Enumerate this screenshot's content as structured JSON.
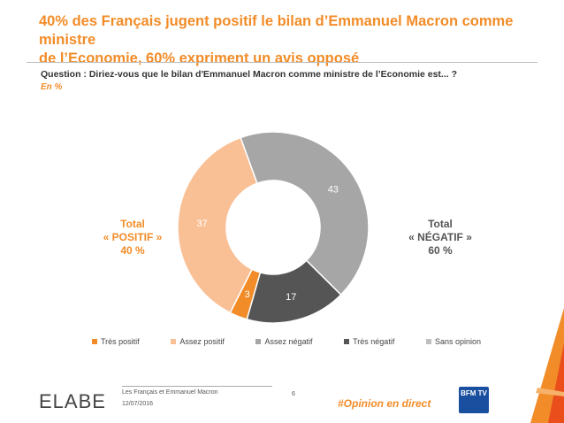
{
  "header": {
    "title_line1": "40% des Français jugent positif le bilan d’Emmanuel Macron comme ministre",
    "title_line2": "de l’Economie, 60% expriment un avis opposé",
    "question": "Question : Diriez-vous que le bilan d'Emmanuel Macron comme ministre de l’Economie est... ?",
    "unit": "En %"
  },
  "totals": {
    "positive": {
      "line1": "Total",
      "line2": "« POSITIF »",
      "line3": "40 %"
    },
    "negative": {
      "line1": "Total",
      "line2": "« NÉGATIF »",
      "line3": "60 %"
    }
  },
  "chart_data": {
    "type": "pie",
    "donut": true,
    "categories": [
      "Très positif",
      "Assez positif",
      "Assez négatif",
      "Très négatif",
      "Sans opinion"
    ],
    "values": [
      3,
      37,
      43,
      17,
      0
    ],
    "labels": [
      "3",
      "37",
      "43",
      "17",
      ""
    ],
    "colors": [
      "#f28c28",
      "#f9c096",
      "#a6a6a6",
      "#555555",
      "#bfbfbf"
    ],
    "legend_position": "bottom"
  },
  "footer": {
    "brand": "ELABE",
    "subtitle": "Les Français et Emmanuel Macron",
    "date": "12/07/2016",
    "page": "6",
    "hashtag": "#Opinion en direct",
    "partner": "BFM TV"
  }
}
